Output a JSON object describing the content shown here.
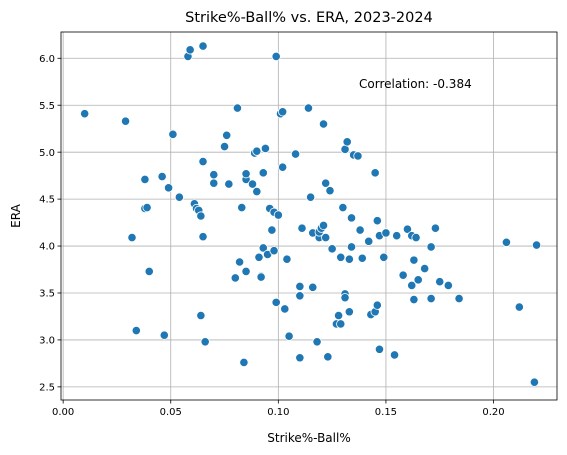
{
  "chart_data": {
    "type": "scatter",
    "title": "Strike%-Ball% vs. ERA, 2023-2024",
    "xlabel": "Strike%-Ball%",
    "ylabel": "ERA",
    "xlim": [
      -0.001,
      0.2295
    ],
    "ylim": [
      2.36,
      6.28
    ],
    "xticks": [
      "0.00",
      "0.05",
      "0.10",
      "0.15",
      "0.20"
    ],
    "yticks": [
      "2.5",
      "3.0",
      "3.5",
      "4.0",
      "4.5",
      "5.0",
      "5.5",
      "6.0"
    ],
    "grid": true,
    "marker_color": "#1f77b4",
    "annotation": "Correlation: -0.384",
    "points": [
      [
        0.01,
        5.41
      ],
      [
        0.029,
        5.33
      ],
      [
        0.032,
        4.09
      ],
      [
        0.034,
        3.1
      ],
      [
        0.038,
        4.71
      ],
      [
        0.038,
        4.4
      ],
      [
        0.039,
        4.41
      ],
      [
        0.04,
        3.73
      ],
      [
        0.046,
        4.74
      ],
      [
        0.047,
        3.05
      ],
      [
        0.049,
        4.62
      ],
      [
        0.051,
        5.19
      ],
      [
        0.054,
        4.52
      ],
      [
        0.058,
        6.02
      ],
      [
        0.059,
        6.09
      ],
      [
        0.061,
        4.45
      ],
      [
        0.062,
        4.4
      ],
      [
        0.063,
        4.38
      ],
      [
        0.064,
        4.32
      ],
      [
        0.064,
        3.26
      ],
      [
        0.065,
        4.9
      ],
      [
        0.065,
        6.13
      ],
      [
        0.065,
        4.1
      ],
      [
        0.066,
        2.98
      ],
      [
        0.07,
        4.76
      ],
      [
        0.07,
        4.67
      ],
      [
        0.075,
        5.06
      ],
      [
        0.076,
        5.18
      ],
      [
        0.077,
        4.66
      ],
      [
        0.08,
        3.66
      ],
      [
        0.081,
        5.47
      ],
      [
        0.082,
        3.83
      ],
      [
        0.083,
        4.41
      ],
      [
        0.084,
        2.76
      ],
      [
        0.085,
        4.71
      ],
      [
        0.085,
        4.77
      ],
      [
        0.085,
        3.73
      ],
      [
        0.088,
        4.66
      ],
      [
        0.089,
        4.99
      ],
      [
        0.09,
        5.01
      ],
      [
        0.09,
        4.58
      ],
      [
        0.091,
        3.88
      ],
      [
        0.092,
        3.68
      ],
      [
        0.092,
        3.67
      ],
      [
        0.093,
        3.98
      ],
      [
        0.093,
        4.78
      ],
      [
        0.094,
        5.04
      ],
      [
        0.095,
        3.91
      ],
      [
        0.096,
        4.4
      ],
      [
        0.097,
        4.17
      ],
      [
        0.098,
        4.36
      ],
      [
        0.098,
        3.95
      ],
      [
        0.099,
        6.02
      ],
      [
        0.099,
        3.4
      ],
      [
        0.1,
        4.33
      ],
      [
        0.101,
        5.41
      ],
      [
        0.102,
        5.43
      ],
      [
        0.102,
        4.84
      ],
      [
        0.103,
        3.33
      ],
      [
        0.104,
        3.86
      ],
      [
        0.105,
        3.04
      ],
      [
        0.108,
        4.98
      ],
      [
        0.11,
        3.57
      ],
      [
        0.11,
        3.47
      ],
      [
        0.11,
        2.81
      ],
      [
        0.111,
        4.19
      ],
      [
        0.114,
        5.47
      ],
      [
        0.115,
        4.52
      ],
      [
        0.116,
        4.14
      ],
      [
        0.116,
        3.56
      ],
      [
        0.118,
        2.98
      ],
      [
        0.119,
        4.09
      ],
      [
        0.119,
        4.15
      ],
      [
        0.12,
        4.19
      ],
      [
        0.121,
        5.3
      ],
      [
        0.121,
        4.22
      ],
      [
        0.122,
        4.09
      ],
      [
        0.122,
        4.67
      ],
      [
        0.123,
        2.82
      ],
      [
        0.124,
        4.59
      ],
      [
        0.125,
        3.97
      ],
      [
        0.127,
        3.17
      ],
      [
        0.128,
        3.26
      ],
      [
        0.129,
        3.17
      ],
      [
        0.129,
        3.88
      ],
      [
        0.13,
        4.41
      ],
      [
        0.131,
        3.49
      ],
      [
        0.131,
        3.45
      ],
      [
        0.131,
        5.03
      ],
      [
        0.132,
        5.11
      ],
      [
        0.133,
        3.3
      ],
      [
        0.133,
        3.86
      ],
      [
        0.134,
        4.3
      ],
      [
        0.134,
        3.99
      ],
      [
        0.135,
        4.97
      ],
      [
        0.137,
        4.96
      ],
      [
        0.138,
        4.17
      ],
      [
        0.139,
        3.87
      ],
      [
        0.142,
        4.05
      ],
      [
        0.143,
        3.27
      ],
      [
        0.145,
        4.78
      ],
      [
        0.145,
        3.3
      ],
      [
        0.146,
        3.37
      ],
      [
        0.146,
        4.27
      ],
      [
        0.147,
        2.9
      ],
      [
        0.147,
        4.11
      ],
      [
        0.149,
        3.88
      ],
      [
        0.15,
        4.14
      ],
      [
        0.154,
        2.84
      ],
      [
        0.155,
        4.11
      ],
      [
        0.158,
        3.69
      ],
      [
        0.16,
        4.18
      ],
      [
        0.162,
        3.58
      ],
      [
        0.162,
        4.11
      ],
      [
        0.163,
        3.43
      ],
      [
        0.163,
        3.85
      ],
      [
        0.164,
        4.09
      ],
      [
        0.165,
        3.64
      ],
      [
        0.168,
        3.76
      ],
      [
        0.171,
        3.99
      ],
      [
        0.171,
        3.44
      ],
      [
        0.173,
        4.19
      ],
      [
        0.175,
        3.62
      ],
      [
        0.179,
        3.58
      ],
      [
        0.184,
        3.44
      ],
      [
        0.206,
        4.04
      ],
      [
        0.212,
        3.35
      ],
      [
        0.219,
        2.55
      ],
      [
        0.22,
        4.01
      ]
    ]
  }
}
